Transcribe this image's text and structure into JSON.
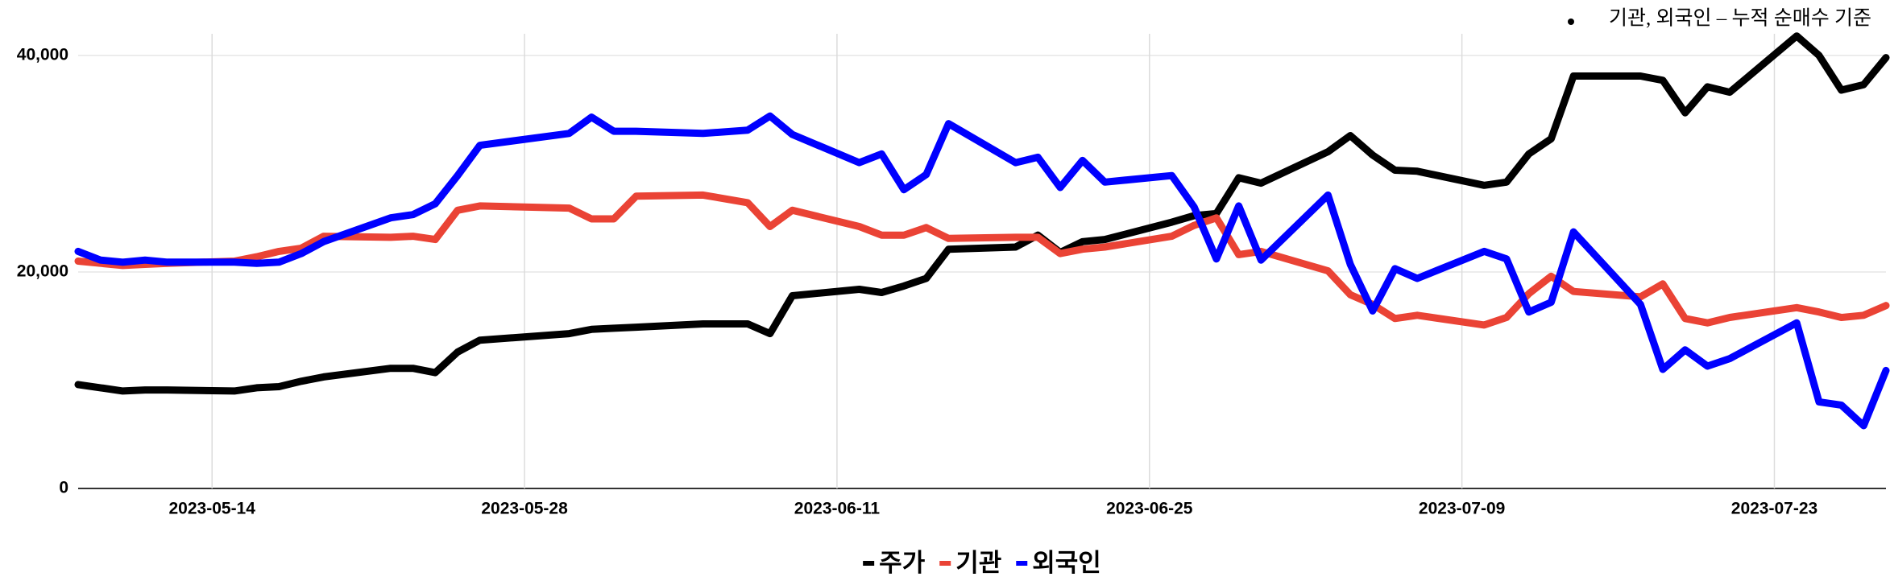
{
  "chart_data": {
    "type": "line",
    "annotation": "기관, 외국인 – 누적 순매수 기준",
    "x": [
      "2023-05-08",
      "2023-05-09",
      "2023-05-10",
      "2023-05-11",
      "2023-05-12",
      "2023-05-15",
      "2023-05-16",
      "2023-05-17",
      "2023-05-18",
      "2023-05-19",
      "2023-05-22",
      "2023-05-23",
      "2023-05-24",
      "2023-05-25",
      "2023-05-26",
      "2023-05-30",
      "2023-05-31",
      "2023-06-01",
      "2023-06-02",
      "2023-06-05",
      "2023-06-07",
      "2023-06-08",
      "2023-06-09",
      "2023-06-12",
      "2023-06-13",
      "2023-06-14",
      "2023-06-15",
      "2023-06-16",
      "2023-06-19",
      "2023-06-20",
      "2023-06-21",
      "2023-06-22",
      "2023-06-23",
      "2023-06-26",
      "2023-06-27",
      "2023-06-28",
      "2023-06-29",
      "2023-06-30",
      "2023-07-03",
      "2023-07-04",
      "2023-07-05",
      "2023-07-06",
      "2023-07-07",
      "2023-07-10",
      "2023-07-11",
      "2023-07-12",
      "2023-07-13",
      "2023-07-14",
      "2023-07-17",
      "2023-07-18",
      "2023-07-19",
      "2023-07-20",
      "2023-07-21",
      "2023-07-24",
      "2023-07-25",
      "2023-07-26",
      "2023-07-27",
      "2023-07-28"
    ],
    "series": [
      {
        "name": "주가",
        "color": "#000000",
        "values": [
          9600,
          9300,
          9000,
          9100,
          9100,
          9000,
          9300,
          9400,
          9900,
          10300,
          11100,
          11100,
          10700,
          12600,
          13700,
          14300,
          14700,
          14800,
          14900,
          15200,
          15200,
          14300,
          17800,
          18400,
          18100,
          18700,
          19400,
          22100,
          22300,
          23400,
          21800,
          22800,
          23000,
          24600,
          25200,
          25400,
          28700,
          28200,
          31100,
          32600,
          30800,
          29400,
          29300,
          28000,
          28300,
          30900,
          32300,
          38100,
          38100,
          37700,
          34700,
          37100,
          36600,
          41800,
          40000,
          36800,
          37300,
          39800
        ]
      },
      {
        "name": "기관",
        "color": "#ea4335",
        "values": [
          21000,
          20800,
          20600,
          20700,
          20800,
          21000,
          21400,
          21900,
          22200,
          23300,
          23200,
          23300,
          23000,
          25700,
          26100,
          25900,
          24900,
          24900,
          27000,
          27100,
          26400,
          24200,
          25700,
          24200,
          23400,
          23400,
          24100,
          23100,
          23200,
          23200,
          21700,
          22100,
          22300,
          23300,
          24300,
          25000,
          21600,
          21900,
          20100,
          17900,
          17000,
          15700,
          16000,
          15100,
          15800,
          18000,
          19600,
          18200,
          17700,
          18900,
          15700,
          15300,
          15800,
          16700,
          16300,
          15800,
          16000,
          16900
        ]
      },
      {
        "name": "외국인",
        "color": "#0000ff",
        "values": [
          21900,
          21100,
          20900,
          21100,
          20900,
          20900,
          20800,
          20900,
          21700,
          22800,
          25000,
          25300,
          26300,
          28900,
          31700,
          32800,
          34300,
          33000,
          33000,
          32800,
          33100,
          34400,
          32700,
          30100,
          30900,
          27600,
          29000,
          33700,
          30100,
          30600,
          27800,
          30300,
          28300,
          28900,
          26000,
          21200,
          26100,
          21100,
          27100,
          20700,
          16400,
          20300,
          19400,
          21900,
          21200,
          16300,
          17200,
          23700,
          17000,
          11000,
          12800,
          11300,
          12000,
          15300,
          8000,
          7700,
          5800,
          10900
        ]
      }
    ],
    "xlim": [
      "2023-05-08",
      "2023-07-28"
    ],
    "xticks": [
      "2023-05-14",
      "2023-05-28",
      "2023-06-11",
      "2023-06-25",
      "2023-07-09",
      "2023-07-23"
    ],
    "ylim": [
      0,
      42000
    ],
    "yticks": [
      0,
      {
        "value": 20000,
        "label": "20,000"
      },
      {
        "value": 40000,
        "label": "40,000"
      }
    ],
    "grid": true,
    "legend": "bottom"
  }
}
